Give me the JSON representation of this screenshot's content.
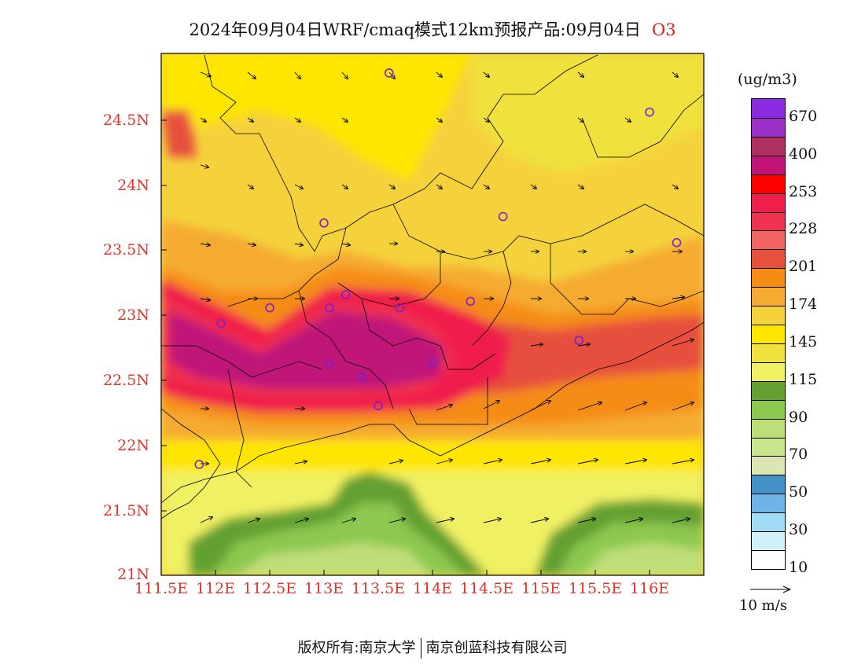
{
  "title": {
    "text": "2024年09月04日WRF/cmaq模式12km预报产品:09月04日",
    "species": "O3"
  },
  "lat_labels": [
    "24.5N",
    "24N",
    "23.5N",
    "23N",
    "22.5N",
    "22N",
    "21.5N",
    "21N"
  ],
  "lon_labels": [
    "111.5E",
    "112E",
    "112.5E",
    "113E",
    "113.5E",
    "114E",
    "114.5E",
    "115E",
    "115.5E",
    "116E"
  ],
  "colorbar": {
    "unit": "(ug/m3)",
    "colors": [
      "#8a2be2",
      "#9b30c8",
      "#b03060",
      "#c0147a",
      "#ff0000",
      "#f01e4b",
      "#f03250",
      "#f06464",
      "#e6503c",
      "#f58c14",
      "#f5aa32",
      "#f5d23c",
      "#ffe600",
      "#f0e13c",
      "#f0f064",
      "#64a032",
      "#8cc850",
      "#bede78",
      "#c8e68c",
      "#dce6b4",
      "#4690c8",
      "#6eb4e6",
      "#a0dcf5",
      "#d2f0fa",
      "#ffffff"
    ],
    "labels": [
      "670",
      "400",
      "253",
      "228",
      "201",
      "174",
      "145",
      "115",
      "90",
      "70",
      "50",
      "30",
      "10"
    ]
  },
  "vector_legend": {
    "label": "10 m/s"
  },
  "footer": {
    "left": "版权所有:南京大学",
    "right": "南京创蓝科技有限公司"
  },
  "map_data": {
    "extent": {
      "lon": [
        111.5,
        116.5
      ],
      "lat": [
        21.0,
        25.0
      ]
    },
    "field": "O3 concentration",
    "high_band": "Pearl River Delta, 112-114.5E / 22.4-23.1N, >400 ug/m3",
    "low_region": "South China Sea, south of 21.8N, 70-115 ug/m3",
    "station_markers": [
      [
        113.6,
        24.85
      ],
      [
        116.0,
        24.55
      ],
      [
        113.0,
        23.7
      ],
      [
        114.65,
        23.75
      ],
      [
        116.25,
        23.55
      ],
      [
        112.5,
        23.05
      ],
      [
        113.05,
        23.05
      ],
      [
        113.2,
        23.15
      ],
      [
        113.7,
        23.05
      ],
      [
        114.35,
        23.1
      ],
      [
        112.05,
        22.93
      ],
      [
        115.35,
        22.8
      ],
      [
        113.05,
        22.62
      ],
      [
        113.35,
        22.52
      ],
      [
        114.0,
        22.63
      ],
      [
        113.5,
        22.3
      ],
      [
        111.85,
        21.85
      ]
    ]
  }
}
